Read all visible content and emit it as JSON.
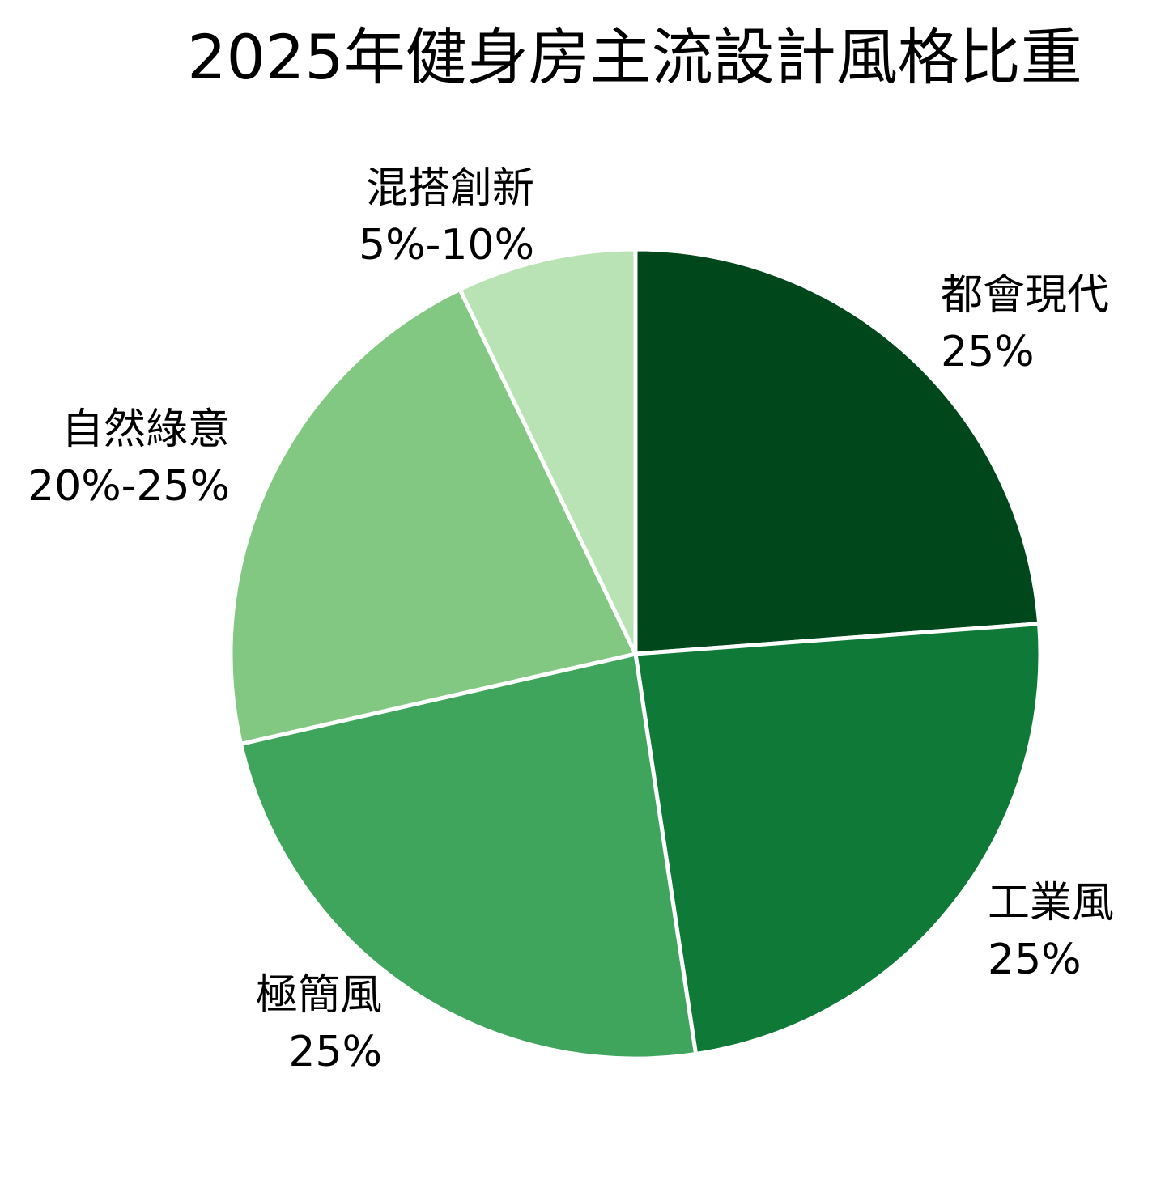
{
  "chart_data": {
    "type": "pie",
    "title": "2025年健身房主流設計風格比重",
    "categories": [
      "都會現代",
      "工業風",
      "極簡風",
      "自然綠意",
      "混搭創新"
    ],
    "values": [
      25,
      25,
      25,
      22.5,
      7.5
    ],
    "value_labels": [
      "25%",
      "25%",
      "25%",
      "20%-25%",
      "5%-10%"
    ],
    "colors": [
      "#00471c",
      "#0f7a38",
      "#3fa55c",
      "#82c882",
      "#b9e3b4"
    ],
    "start_angle": "12 o'clock",
    "direction": "clockwise",
    "slice_separator_color": "#ffffff",
    "legend": "none"
  }
}
